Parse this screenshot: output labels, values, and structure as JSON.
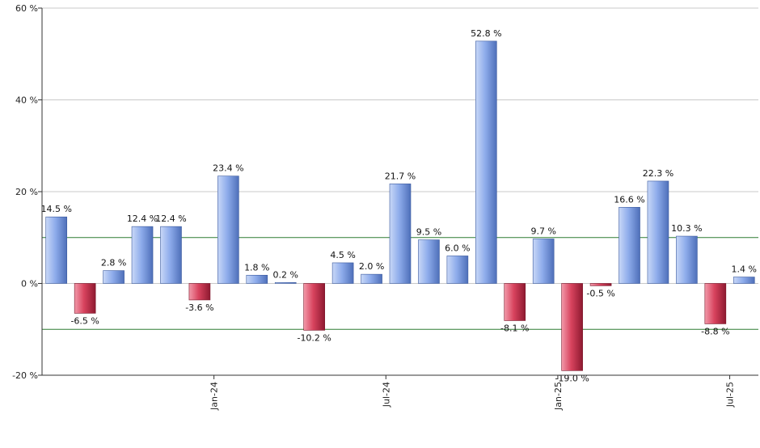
{
  "chart_data": {
    "type": "bar",
    "title": "",
    "xlabel": "",
    "ylabel": "",
    "ylim": [
      -20,
      60
    ],
    "yticks": [
      -20,
      0,
      20,
      40,
      60
    ],
    "ytick_labels": [
      "-20 %",
      "0 %",
      "20 %",
      "40 %",
      "60 %"
    ],
    "reference_lines": [
      10,
      -10
    ],
    "grid": true,
    "legend": "none",
    "x_tick_labels": [
      {
        "label": "Jan-24",
        "index": 5.5
      },
      {
        "label": "Jul-24",
        "index": 11.5
      },
      {
        "label": "Jan-25",
        "index": 17.5
      },
      {
        "label": "Jul-25",
        "index": 23.5
      }
    ],
    "values": [
      14.5,
      -6.5,
      2.8,
      12.4,
      12.4,
      -3.6,
      23.4,
      1.8,
      0.2,
      -10.2,
      4.5,
      2.0,
      21.7,
      9.5,
      6.0,
      52.8,
      -8.1,
      9.7,
      -19.0,
      -0.5,
      16.6,
      22.3,
      10.3,
      -8.8,
      1.4
    ],
    "labels": [
      "14.5 %",
      "-6.5 %",
      "2.8 %",
      "12.4 %",
      "12.4 %",
      "-3.6 %",
      "23.4 %",
      "1.8 %",
      "0.2 %",
      "-10.2 %",
      "4.5 %",
      "2.0 %",
      "21.7 %",
      "9.5 %",
      "6.0 %",
      "52.8 %",
      "-8.1 %",
      "9.7 %",
      "-19.0 %",
      "-0.5 %",
      "16.6 %",
      "22.3 %",
      "10.3 %",
      "-8.8 %",
      "1.4 %"
    ],
    "colors": {
      "positive_light": "#c9d8f7",
      "positive_mid": "#8eaceb",
      "positive_dark": "#4e6fb9",
      "negative_light": "#f29aaa",
      "negative_mid": "#d8435e",
      "negative_dark": "#8e1930",
      "gridline": "#c8c8c8",
      "reference_line": "#2e7d32",
      "axis": "#333333"
    }
  }
}
